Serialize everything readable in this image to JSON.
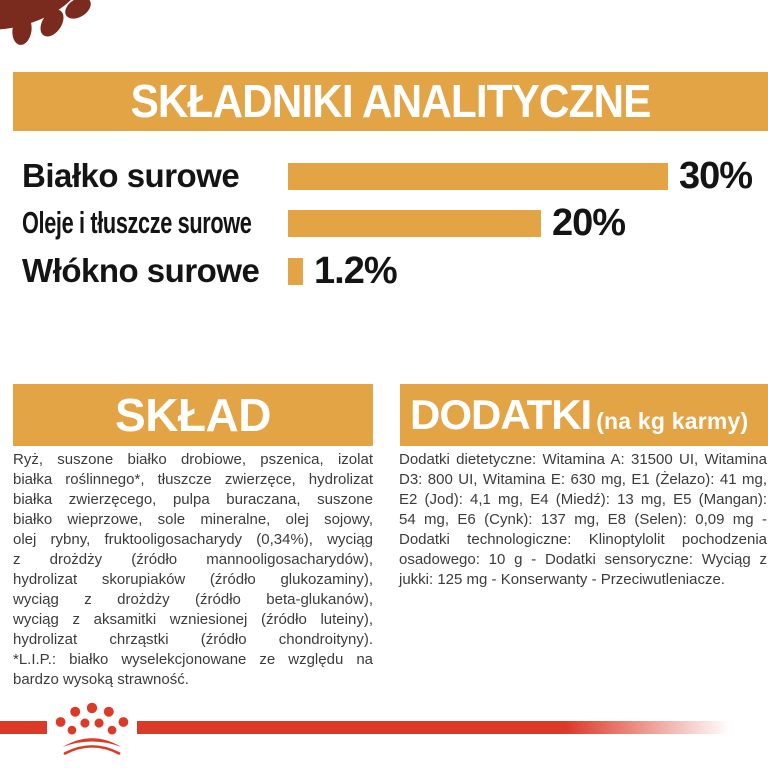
{
  "header": {
    "title": "SKŁADNIKI ANALITYCZNE"
  },
  "chart_data": {
    "type": "bar",
    "orientation": "horizontal",
    "title": "SKŁADNIKI ANALITYCZNE",
    "categories": [
      "Białko surowe",
      "Oleje i tłuszcze surowe",
      "Włókno surowe"
    ],
    "values": [
      30,
      20,
      1.2
    ],
    "value_labels": [
      "30%",
      "20%",
      "1.2%"
    ],
    "unit": "%",
    "xlim": [
      0,
      30
    ],
    "grid": false,
    "bar_color": "#E2A444"
  },
  "analytics": {
    "rows": [
      {
        "label": "Białko surowe",
        "value": 30,
        "value_label": "30%"
      },
      {
        "label": "Oleje i tłuszcze surowe",
        "value": 20,
        "value_label": "20%"
      },
      {
        "label": "Włókno surowe",
        "value": 1.2,
        "value_label": "1.2%"
      }
    ]
  },
  "sklad": {
    "title": "SKŁAD",
    "lines": [
      "Ryż, suszone białko drobiowe, pszenica, izolat",
      "białka roślinnego*, tłuszcze zwierzęce, hydrolizat",
      "białka zwierzęcego, pulpa buraczana, suszone",
      "białko wieprzowe, sole mineralne, olej sojowy,",
      "olej rybny, fruktooligosacharydy (0,34%), wyciąg",
      "z drożdży (źródło mannooligosacharydów),",
      "hydrolizat skorupiaków (źródło glukozaminy),",
      "wyciąg z drożdży (źródło beta-glukanów),",
      "wyciąg z aksamitki wzniesionej (źródło luteiny),",
      "hydrolizat chrząstki (źródło chondroityny).",
      "*L.I.P.: białko wyselekcjonowane ze względu na",
      "bardzo wysoką strawność."
    ]
  },
  "dodatki": {
    "title": "DODATKI",
    "subtitle": "(na kg karmy)",
    "lines": [
      "Dodatki dietetyczne: Witamina A: 31500 UI, Witamina",
      "D3: 800 UI, Witamina E: 630 mg, E1 (Żelazo): 41 mg,",
      "E2 (Jod): 4,1 mg, E4 (Miedź): 13 mg, E5 (Mangan):",
      "54 mg, E6 (Cynk): 137 mg, E8 (Selen): 0,09 mg -",
      "Dodatki technologiczne: Klinoptylolit pochodzenia",
      "osadowego: 10 g - Dodatki sensoryczne: Wyciąg z",
      "jukki: 125 mg - Konserwanty - Przeciwutleniacze."
    ]
  },
  "icons": {
    "corner": "paw-print-icon",
    "brand": "royal-canin-crown-icon"
  },
  "colors": {
    "gold": "#E2A444",
    "red": "#DC3A28",
    "maroon": "#7B2A1E",
    "body_text": "#3C3C3C",
    "label_text": "#141414",
    "banner_text": "#FFFFFF",
    "background": "#FFFFFF"
  }
}
